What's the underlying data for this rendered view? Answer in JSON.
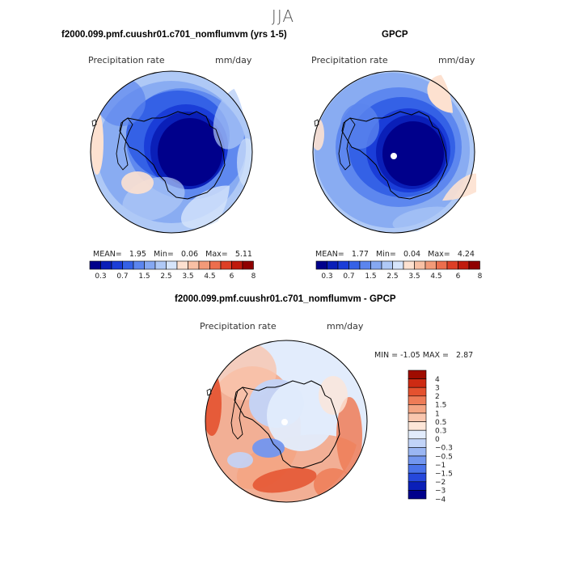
{
  "figure": {
    "title": "JJA"
  },
  "colors": {
    "abs_palette": [
      "#00008b",
      "#0a1fb8",
      "#1a3dd8",
      "#3461e6",
      "#5b85ee",
      "#85a8f2",
      "#afc9f6",
      "#d6e5fb",
      "#fde1d0",
      "#f8c0a4",
      "#f39a78",
      "#ec6e4d",
      "#dd3f26",
      "#c01b0d",
      "#8f0000"
    ],
    "diff_palette": [
      "#00008b",
      "#0a1fb8",
      "#2648dc",
      "#4a73ea",
      "#7296ef",
      "#9ab6f3",
      "#c2d4f8",
      "#e2ecfc",
      "#fde6d8",
      "#f9c6ae",
      "#f4a583",
      "#ee7c57",
      "#e4522f",
      "#cd2b13",
      "#9f0c00"
    ]
  },
  "chart_data": [
    {
      "type": "heatmap",
      "title": "f2000.099.pmf.cuushr01.c701_nomflumvm (yrs 1-5)",
      "variable": "Precipitation rate",
      "units": "mm/day",
      "projection": "south-polar-stereographic",
      "stats": {
        "mean_label": "MEAN=",
        "mean": "1.95",
        "min_label": "Min=",
        "min": "0.06",
        "max_label": "Max=",
        "max": "5.11"
      },
      "colorbar_levels": [
        "0.3",
        "0.7",
        "1.5",
        "2.5",
        "3.5",
        "4.5",
        "6",
        "8"
      ],
      "colorbar_orientation": "horizontal"
    },
    {
      "type": "heatmap",
      "title": "GPCP",
      "variable": "Precipitation rate",
      "units": "mm/day",
      "projection": "south-polar-stereographic",
      "stats": {
        "mean_label": "MEAN=",
        "mean": "1.77",
        "min_label": "Min=",
        "min": "0.04",
        "max_label": "Max=",
        "max": "4.24"
      },
      "colorbar_levels": [
        "0.3",
        "0.7",
        "1.5",
        "2.5",
        "3.5",
        "4.5",
        "6",
        "8"
      ],
      "colorbar_orientation": "horizontal"
    },
    {
      "type": "heatmap",
      "title": "f2000.099.pmf.cuushr01.c701_nomflumvm - GPCP",
      "variable": "Precipitation rate",
      "units": "mm/day",
      "projection": "south-polar-stereographic",
      "stats": {
        "min_label": "MIN =",
        "min": "-1.05",
        "max_label": "MAX =",
        "max": "2.87"
      },
      "colorbar_levels": [
        "4",
        "3",
        "2",
        "1.5",
        "1",
        "0.5",
        "0.3",
        "0",
        "−0.3",
        "−0.5",
        "−1",
        "−1.5",
        "−2",
        "−3",
        "−4"
      ],
      "colorbar_orientation": "vertical"
    }
  ]
}
